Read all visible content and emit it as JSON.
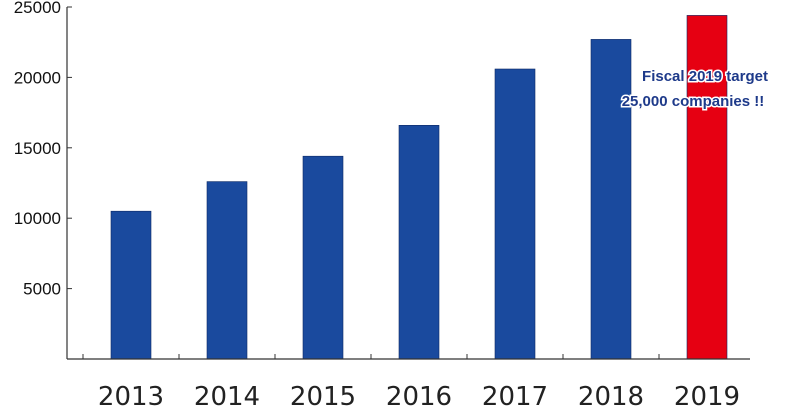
{
  "chart_data": {
    "type": "bar",
    "categories": [
      "2013",
      "2014",
      "2015",
      "2016",
      "2017",
      "2018",
      "2019"
    ],
    "values": [
      10500,
      12600,
      14400,
      16600,
      20600,
      22700,
      24400
    ],
    "ylim": [
      0,
      25000
    ],
    "yticks": [
      "5000",
      "10000",
      "15000",
      "20000",
      "25000"
    ],
    "title": "",
    "xlabel": "",
    "ylabel": "",
    "grid": false,
    "bar_color": "#1a4a9e",
    "highlight_color": "#e60012",
    "highlight_category": "2019",
    "annotation": {
      "lines": [
        "Fiscal 2019 target",
        "25,000 companies !!"
      ],
      "category": "2019",
      "color": "#1e3a8a"
    }
  }
}
